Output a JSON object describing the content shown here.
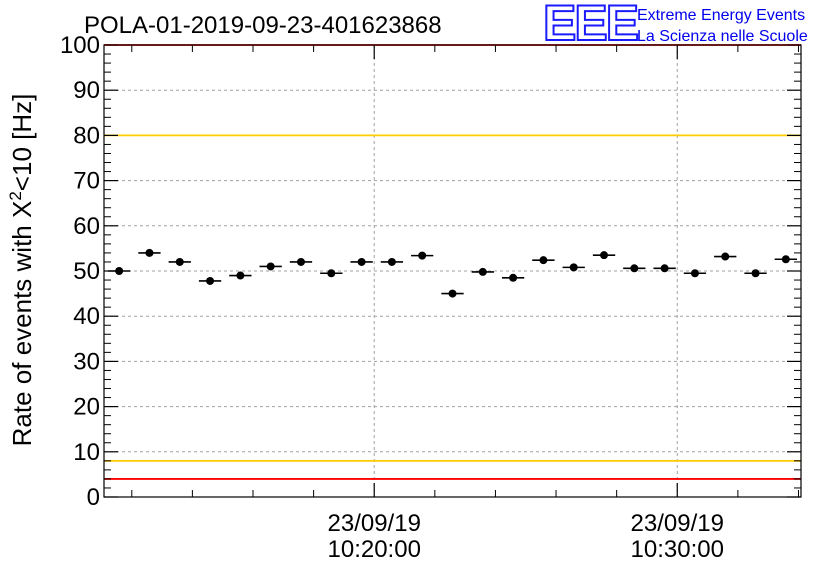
{
  "header": {
    "title": "POLA-01-2019-09-23-401623868",
    "logo": "EEE",
    "org_line1": "Extreme Energy Events",
    "org_line2": "La Scienza nelle Scuole"
  },
  "chart_data": {
    "type": "scatter",
    "title": "POLA-01-2019-09-23-401623868",
    "xlabel": "",
    "ylabel": "Rate of events with X²<10 [Hz]",
    "ylabel_parts": {
      "before": "Rate of events with X",
      "sup": "2",
      "after": "<10 [Hz]"
    },
    "ylim": [
      0,
      100
    ],
    "xlim": [
      "2019-09-23 10:11:05",
      "2019-09-23 10:34:05"
    ],
    "y_ticks": [
      "0",
      "10",
      "20",
      "30",
      "40",
      "50",
      "60",
      "70",
      "80",
      "90",
      "100"
    ],
    "x_tick_labels": [
      {
        "date": "23/09/19",
        "time": "10:20:00",
        "t": "2019-09-23 10:20:00"
      },
      {
        "date": "23/09/19",
        "time": "10:30:00",
        "t": "2019-09-23 10:30:00"
      }
    ],
    "grid": true,
    "bin_width_seconds": 60,
    "points": [
      {
        "t": "2019-09-23 10:11:35",
        "y": 50.0
      },
      {
        "t": "2019-09-23 10:12:35",
        "y": 54.0
      },
      {
        "t": "2019-09-23 10:13:35",
        "y": 52.0
      },
      {
        "t": "2019-09-23 10:14:35",
        "y": 47.8
      },
      {
        "t": "2019-09-23 10:15:35",
        "y": 49.0
      },
      {
        "t": "2019-09-23 10:16:35",
        "y": 51.0
      },
      {
        "t": "2019-09-23 10:17:35",
        "y": 52.0
      },
      {
        "t": "2019-09-23 10:18:35",
        "y": 49.5
      },
      {
        "t": "2019-09-23 10:19:35",
        "y": 52.0
      },
      {
        "t": "2019-09-23 10:20:35",
        "y": 52.0
      },
      {
        "t": "2019-09-23 10:21:35",
        "y": 53.4
      },
      {
        "t": "2019-09-23 10:22:35",
        "y": 45.0
      },
      {
        "t": "2019-09-23 10:23:35",
        "y": 49.8
      },
      {
        "t": "2019-09-23 10:24:35",
        "y": 48.5
      },
      {
        "t": "2019-09-23 10:25:35",
        "y": 52.4
      },
      {
        "t": "2019-09-23 10:26:35",
        "y": 50.8
      },
      {
        "t": "2019-09-23 10:27:35",
        "y": 53.5
      },
      {
        "t": "2019-09-23 10:28:35",
        "y": 50.6
      },
      {
        "t": "2019-09-23 10:29:35",
        "y": 50.6
      },
      {
        "t": "2019-09-23 10:30:35",
        "y": 49.5
      },
      {
        "t": "2019-09-23 10:31:35",
        "y": 53.2
      },
      {
        "t": "2019-09-23 10:32:35",
        "y": 49.5
      },
      {
        "t": "2019-09-23 10:33:35",
        "y": 52.6
      }
    ],
    "reference_lines": [
      {
        "y": 100,
        "color": "#ff0000"
      },
      {
        "y": 80,
        "color": "#ffcc00"
      },
      {
        "y": 8,
        "color": "#ffcc00"
      },
      {
        "y": 4,
        "color": "#ff0000"
      }
    ]
  }
}
